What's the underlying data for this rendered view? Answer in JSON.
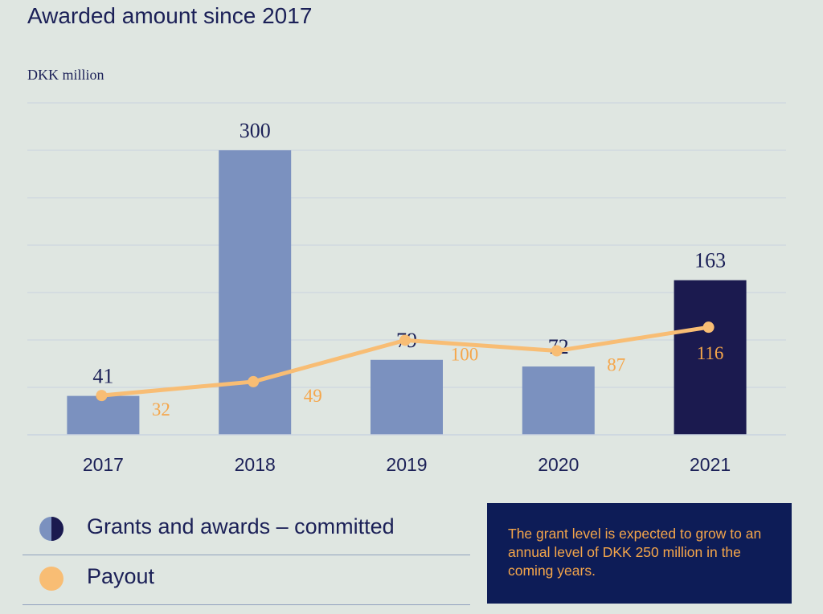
{
  "title": "Awarded amount since 2017",
  "unit_label": "DKK million",
  "legend": [
    {
      "label": "Grants and awards – committed",
      "icon": "half-filled-circle-icon"
    },
    {
      "label": "Payout",
      "icon": "orange-circle-icon"
    }
  ],
  "note": "The grant level is expected to grow to an annual level of DKK 250 million in the coming years.",
  "colors": {
    "background": "#dfe6e1",
    "bar": "#7b91bf",
    "bar_highlight": "#1b1a4f",
    "line": "#f8bd74",
    "line_label": "#f5a64a",
    "text": "#1b2057",
    "grid": "#c9d3e0",
    "note_bg": "#0d1c57"
  },
  "chart_data": {
    "type": "bar",
    "categories": [
      "2017",
      "2018",
      "2019",
      "2020",
      "2021"
    ],
    "series": [
      {
        "name": "Grants and awards – committed",
        "values": [
          41,
          300,
          79,
          72,
          163
        ],
        "kind": "bar",
        "highlight": [
          false,
          false,
          false,
          false,
          true
        ]
      },
      {
        "name": "Payout",
        "values": [
          32,
          49,
          100,
          87,
          116
        ],
        "kind": "line"
      }
    ],
    "title": "Awarded amount since 2017",
    "ylabel": "DKK million",
    "ylim": [
      0,
      350
    ],
    "grid": true
  }
}
